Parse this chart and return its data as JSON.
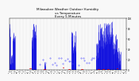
{
  "title": "Milwaukee Weather Outdoor Humidity\nvs Temperature\nEvery 5 Minutes",
  "title_fontsize": 3.0,
  "background_color": "#f8f8f8",
  "plot_bg_color": "#f8f8f8",
  "grid_color": "#aaaaaa",
  "blue_color": "#0000dd",
  "red_color": "#dd0000",
  "dot_color": "#4444ff",
  "ylim": [
    0,
    100
  ],
  "num_points": 500,
  "y_ticks": [
    0,
    20,
    40,
    60,
    80,
    100
  ],
  "seed": 42
}
